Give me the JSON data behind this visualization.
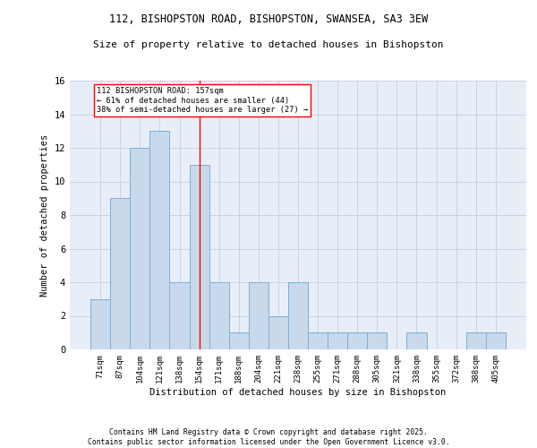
{
  "title_line1": "112, BISHOPSTON ROAD, BISHOPSTON, SWANSEA, SA3 3EW",
  "title_line2": "Size of property relative to detached houses in Bishopston",
  "xlabel": "Distribution of detached houses by size in Bishopston",
  "ylabel": "Number of detached properties",
  "categories": [
    "71sqm",
    "87sqm",
    "104sqm",
    "121sqm",
    "138sqm",
    "154sqm",
    "171sqm",
    "188sqm",
    "204sqm",
    "221sqm",
    "238sqm",
    "255sqm",
    "271sqm",
    "288sqm",
    "305sqm",
    "321sqm",
    "338sqm",
    "355sqm",
    "372sqm",
    "388sqm",
    "405sqm"
  ],
  "values": [
    3,
    9,
    12,
    13,
    4,
    11,
    4,
    1,
    4,
    2,
    4,
    1,
    1,
    1,
    1,
    0,
    1,
    0,
    0,
    1,
    1
  ],
  "bar_color": "#c9d9ec",
  "bar_edge_color": "#7aafd4",
  "reference_line_x": 5,
  "reference_line_color": "red",
  "annotation_text": "112 BISHOPSTON ROAD: 157sqm\n← 61% of detached houses are smaller (44)\n38% of semi-detached houses are larger (27) →",
  "ylim": [
    0,
    16
  ],
  "yticks": [
    0,
    2,
    4,
    6,
    8,
    10,
    12,
    14,
    16
  ],
  "grid_color": "#c0cfe0",
  "bg_color": "#e8eef8",
  "footnote": "Contains HM Land Registry data © Crown copyright and database right 2025.\nContains public sector information licensed under the Open Government Licence v3.0."
}
